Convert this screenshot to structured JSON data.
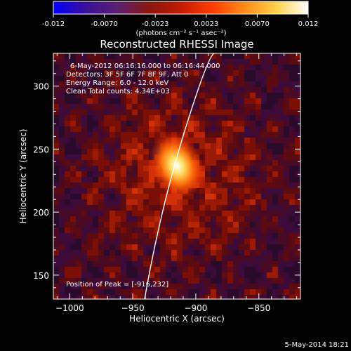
{
  "colorbar": {
    "ticks": [
      "-0.012",
      "-0.0070",
      "-0.0023",
      "0.0023",
      "0.0070",
      "0.012"
    ],
    "units": "(photons cm⁻² s⁻¹ asec⁻²)",
    "stops": [
      "#0000ff",
      "#3a0f9a",
      "#5a1f70",
      "#8a1510",
      "#c41a00",
      "#ff3b00",
      "#ff8a1a",
      "#ffd24a",
      "#ffffff"
    ]
  },
  "chart_data": {
    "type": "heatmap",
    "title": "Reconstructed RHESSI Image",
    "xlabel": "Heliocentric X (arcsec)",
    "ylabel": "Heliocentric Y (arcsec)",
    "xlim": [
      -1013,
      -817
    ],
    "ylim": [
      131,
      326
    ],
    "xticks": [
      -1000,
      -950,
      -900,
      -850
    ],
    "yticks": [
      150,
      200,
      250,
      300
    ],
    "color_range": [
      -0.012,
      0.012
    ],
    "peak": {
      "x": -916,
      "y": 232
    },
    "annotations": [
      "6-May-2012 06:16:16.000 to 06:16:44.000",
      "Detectors: 3F 5F 6F 7F 8F 9F, Att 0",
      "Energy Range: 6.0 - 12.0 keV",
      "Clean     Total counts: 4.34E+03"
    ],
    "peak_label": "Position of Peak = [-916,232]"
  },
  "footer": {
    "timestamp": "5-May-2014 18:21"
  }
}
